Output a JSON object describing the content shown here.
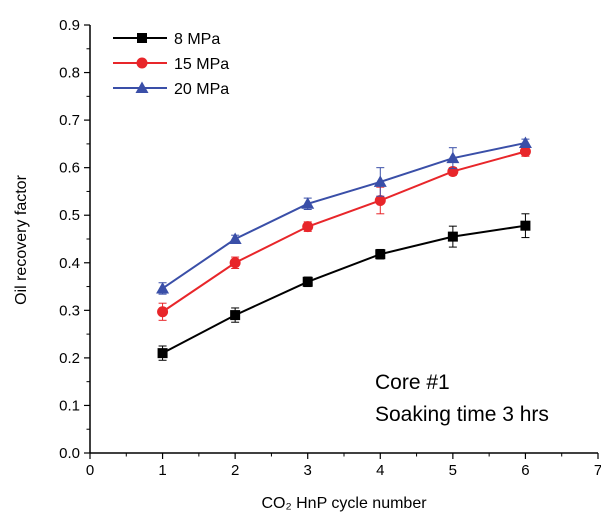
{
  "chart_data": {
    "type": "line",
    "title": "",
    "xlabel": "CO₂ HnP cycle number",
    "ylabel": "Oil recovery factor",
    "xlim": [
      0,
      7
    ],
    "ylim": [
      0,
      0.9
    ],
    "xticks": [
      0,
      1,
      2,
      3,
      4,
      5,
      6,
      7
    ],
    "yticks": [
      0.0,
      0.1,
      0.2,
      0.3,
      0.4,
      0.5,
      0.6,
      0.7,
      0.8,
      0.9
    ],
    "xtick_labels": [
      "0",
      "1",
      "2",
      "3",
      "4",
      "5",
      "6",
      "7"
    ],
    "ytick_labels": [
      "0.0",
      "0.1",
      "0.2",
      "0.3",
      "0.4",
      "0.5",
      "0.6",
      "0.7",
      "0.8",
      "0.9"
    ],
    "grid": false,
    "legend_position": "top-left",
    "series": [
      {
        "name": "8 MPa",
        "color": "#000000",
        "marker": "square",
        "x": [
          1,
          2,
          3,
          4,
          5,
          6
        ],
        "y": [
          0.21,
          0.29,
          0.36,
          0.418,
          0.455,
          0.478
        ],
        "error": [
          0.015,
          0.015,
          0.01,
          0.01,
          0.022,
          0.025
        ]
      },
      {
        "name": "15 MPa",
        "color": "#e8262a",
        "marker": "circle",
        "x": [
          1,
          2,
          3,
          4,
          5,
          6
        ],
        "y": [
          0.297,
          0.4,
          0.476,
          0.531,
          0.592,
          0.634
        ],
        "error": [
          0.018,
          0.012,
          0.01,
          0.028,
          0.008,
          0.01
        ]
      },
      {
        "name": "20 MPa",
        "color": "#3a4fa8",
        "marker": "triangle",
        "x": [
          1,
          2,
          3,
          4,
          5,
          6
        ],
        "y": [
          0.346,
          0.45,
          0.524,
          0.57,
          0.62,
          0.652
        ],
        "error": [
          0.012,
          0.008,
          0.012,
          0.03,
          0.022,
          0.008
        ]
      }
    ],
    "annotations": [
      "Core #1",
      "Soaking time 3 hrs"
    ]
  }
}
